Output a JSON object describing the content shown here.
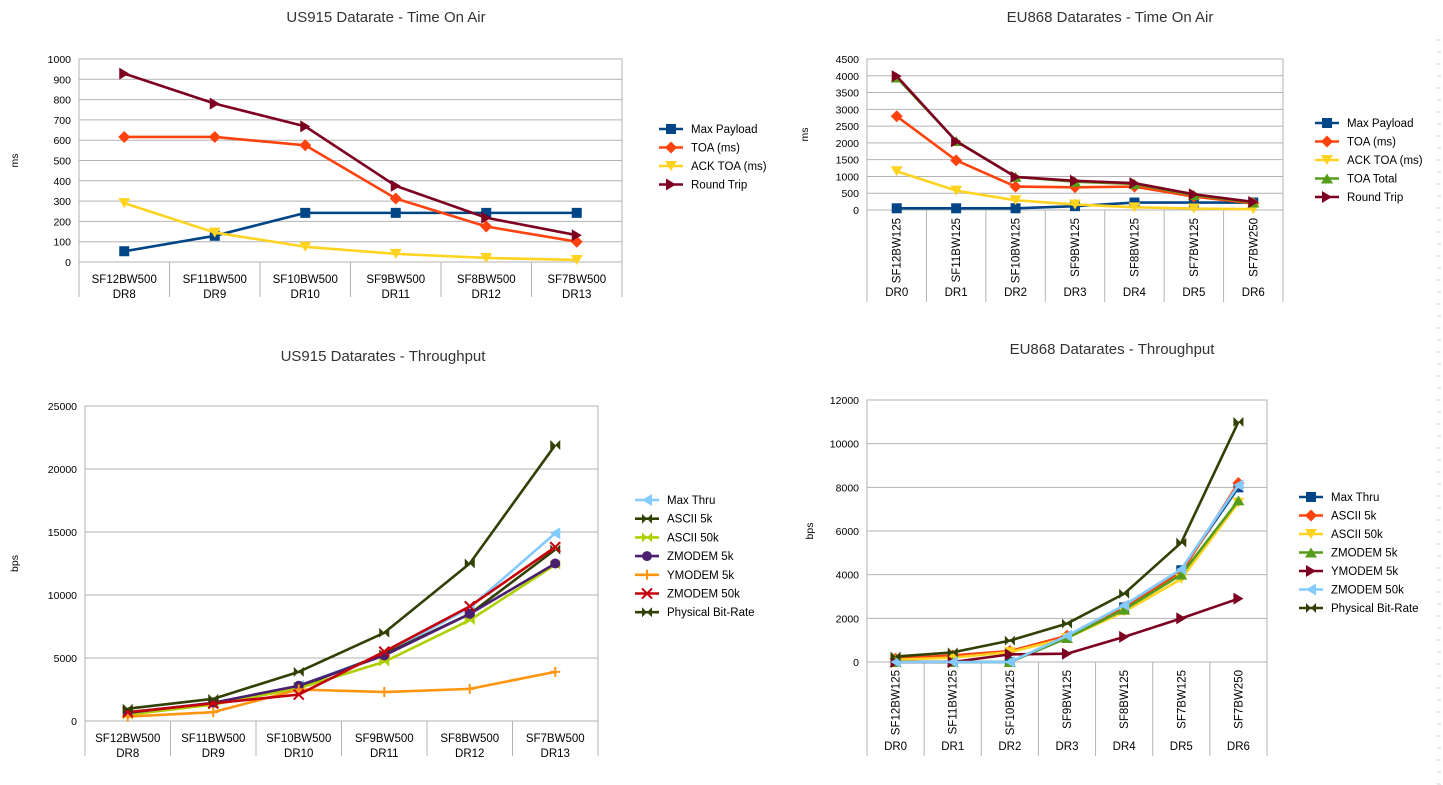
{
  "chart_data": [
    {
      "type": "line",
      "title": "US915 Datarate - Time On Air",
      "ylabel": "ms",
      "xlabel": "",
      "ylim": [
        0,
        1000
      ],
      "yticks": [
        "0",
        "100",
        "200",
        "300",
        "400",
        "500",
        "600",
        "700",
        "800",
        "900",
        "1000"
      ],
      "ytick_values": [
        0,
        100,
        200,
        300,
        400,
        500,
        600,
        700,
        800,
        900,
        1000
      ],
      "categories": [
        [
          "SF12BW500",
          "DR8"
        ],
        [
          "SF11BW500",
          "DR9"
        ],
        [
          "SF10BW500",
          "DR10"
        ],
        [
          "SF9BW500",
          "DR11"
        ],
        [
          "SF8BW500",
          "DR12"
        ],
        [
          "SF7BW500",
          "DR13"
        ]
      ],
      "category_orientation": "horizontal",
      "grid": true,
      "legend_position": "right",
      "series": [
        {
          "name": "Max Payload",
          "color": "#004586",
          "marker": "square",
          "values": [
            53,
            129,
            242,
            242,
            242,
            242
          ]
        },
        {
          "name": "TOA (ms)",
          "color": "#ff420e",
          "marker": "diamond",
          "values": [
            616,
            616,
            575,
            313,
            175,
            100
          ]
        },
        {
          "name": "ACK TOA (ms)",
          "color": "#ffd320",
          "marker": "triangle-down",
          "values": [
            290,
            145,
            75,
            40,
            20,
            10
          ]
        },
        {
          "name": "Round Trip",
          "color": "#7e0021",
          "marker": "triangle-right",
          "values": [
            928,
            780,
            668,
            375,
            218,
            132
          ]
        }
      ]
    },
    {
      "type": "line",
      "title": "EU868 Datarates - Time On Air",
      "ylabel": "ms",
      "xlabel": "",
      "ylim": [
        0,
        4500
      ],
      "yticks": [
        "0",
        "500",
        "1000",
        "1500",
        "2000",
        "2500",
        "3000",
        "3500",
        "4000",
        "4500"
      ],
      "ytick_values": [
        0,
        500,
        1000,
        1500,
        2000,
        2500,
        3000,
        3500,
        4000,
        4500
      ],
      "categories": [
        [
          "SF12BW125",
          "DR0"
        ],
        [
          "SF11BW125",
          "DR1"
        ],
        [
          "SF10BW125",
          "DR2"
        ],
        [
          "SF9BW125",
          "DR3"
        ],
        [
          "SF8BW125",
          "DR4"
        ],
        [
          "SF7BW125",
          "DR5"
        ],
        [
          "SF7BW250",
          "DR6"
        ]
      ],
      "category_orientation": "vertical",
      "grid": true,
      "legend_position": "right",
      "series": [
        {
          "name": "Max Payload",
          "color": "#004586",
          "marker": "square",
          "values": [
            51,
            51,
            51,
            115,
            222,
            222,
            222
          ]
        },
        {
          "name": "TOA (ms)",
          "color": "#ff420e",
          "marker": "diamond",
          "values": [
            2793,
            1479,
            698,
            677,
            698,
            400,
            200
          ]
        },
        {
          "name": "ACK TOA (ms)",
          "color": "#ffd320",
          "marker": "triangle-down",
          "values": [
            1155,
            578,
            289,
            165,
            80,
            45,
            25
          ]
        },
        {
          "name": "TOA Total",
          "color": "#579d1c",
          "marker": "triangle-up",
          "values": [
            3948,
            2057,
            987,
            842,
            778,
            445,
            225
          ]
        },
        {
          "name": "Round Trip",
          "color": "#7e0021",
          "marker": "triangle-right",
          "values": [
            3990,
            2050,
            987,
            870,
            800,
            470,
            240
          ]
        }
      ]
    },
    {
      "type": "line",
      "title": "US915 Datarates - Throughput",
      "ylabel": "bps",
      "xlabel": "",
      "ylim": [
        0,
        25000
      ],
      "yticks": [
        "0",
        "5000",
        "10000",
        "15000",
        "20000",
        "25000"
      ],
      "ytick_values": [
        0,
        5000,
        10000,
        15000,
        20000,
        25000
      ],
      "categories": [
        [
          "SF12BW500",
          "DR8"
        ],
        [
          "SF11BW500",
          "DR9"
        ],
        [
          "SF10BW500",
          "DR10"
        ],
        [
          "SF9BW500",
          "DR11"
        ],
        [
          "SF8BW500",
          "DR12"
        ],
        [
          "SF7BW500",
          "DR13"
        ]
      ],
      "category_orientation": "horizontal",
      "grid": true,
      "legend_position": "right",
      "series": [
        {
          "name": "Max Thru",
          "color": "#83caff",
          "marker": "triangle-left",
          "values": [
            700,
            1400,
            2800,
            5300,
            9000,
            14900
          ]
        },
        {
          "name": "ASCII 5k",
          "color": "#314004",
          "marker": "bowtie",
          "values": [
            600,
            1350,
            2700,
            5300,
            8500,
            13600
          ]
        },
        {
          "name": "ASCII 50k",
          "color": "#aecf00",
          "marker": "bowtie",
          "values": [
            500,
            1300,
            2600,
            4700,
            8000,
            12400
          ]
        },
        {
          "name": "ZMODEM 5k",
          "color": "#4b1f6f",
          "marker": "circle",
          "values": [
            650,
            1450,
            2800,
            5200,
            8500,
            12500
          ]
        },
        {
          "name": "YMODEM 5k",
          "color": "#ff950e",
          "marker": "plus",
          "values": [
            350,
            700,
            2500,
            2300,
            2550,
            3900
          ]
        },
        {
          "name": "ZMODEM 50k",
          "color": "#c5000b",
          "marker": "cross",
          "values": [
            700,
            1400,
            2100,
            5500,
            9100,
            13800
          ]
        },
        {
          "name": "Physical Bit-Rate",
          "color": "#314004",
          "marker": "bowtie",
          "values": [
            980,
            1760,
            3900,
            7000,
            12500,
            21900
          ]
        }
      ]
    },
    {
      "type": "line",
      "title": "EU868 Datarates - Throughput",
      "ylabel": "bps",
      "xlabel": "",
      "ylim": [
        0,
        12000
      ],
      "yticks": [
        "0",
        "2000",
        "4000",
        "6000",
        "8000",
        "10000",
        "12000"
      ],
      "ytick_values": [
        0,
        2000,
        4000,
        6000,
        8000,
        10000,
        12000
      ],
      "categories": [
        [
          "SF12BW125",
          "DR0"
        ],
        [
          "SF11BW125",
          "DR1"
        ],
        [
          "SF10BW125",
          "DR2"
        ],
        [
          "SF9BW125",
          "DR3"
        ],
        [
          "SF8BW125",
          "DR4"
        ],
        [
          "SF7BW125",
          "DR5"
        ],
        [
          "SF7BW250",
          "DR6"
        ]
      ],
      "category_orientation": "vertical",
      "grid": true,
      "legend_position": "right",
      "series": [
        {
          "name": "Max Thru",
          "color": "#004586",
          "marker": "square",
          "values": [
            0,
            0,
            0,
            1100,
            2500,
            4200,
            8000
          ]
        },
        {
          "name": "ASCII 5k",
          "color": "#ff420e",
          "marker": "diamond",
          "values": [
            150,
            300,
            500,
            1200,
            2500,
            4100,
            8200
          ]
        },
        {
          "name": "ASCII 50k",
          "color": "#ffd320",
          "marker": "triangle-down",
          "values": [
            100,
            200,
            450,
            1100,
            2300,
            3800,
            7300
          ]
        },
        {
          "name": "ZMODEM 5k",
          "color": "#579d1c",
          "marker": "triangle-up",
          "values": [
            0,
            0,
            0,
            1100,
            2400,
            4000,
            7400
          ]
        },
        {
          "name": "YMODEM 5k",
          "color": "#7e0021",
          "marker": "triangle-right",
          "values": [
            0,
            0,
            350,
            380,
            1150,
            2000,
            2900
          ]
        },
        {
          "name": "ZMODEM 50k",
          "color": "#83caff",
          "marker": "triangle-left",
          "values": [
            0,
            0,
            0,
            1200,
            2600,
            4250,
            8100
          ]
        },
        {
          "name": "Physical Bit-Rate",
          "color": "#314004",
          "marker": "bowtie",
          "values": [
            250,
            440,
            980,
            1760,
            3125,
            5470,
            11000
          ]
        }
      ]
    }
  ]
}
